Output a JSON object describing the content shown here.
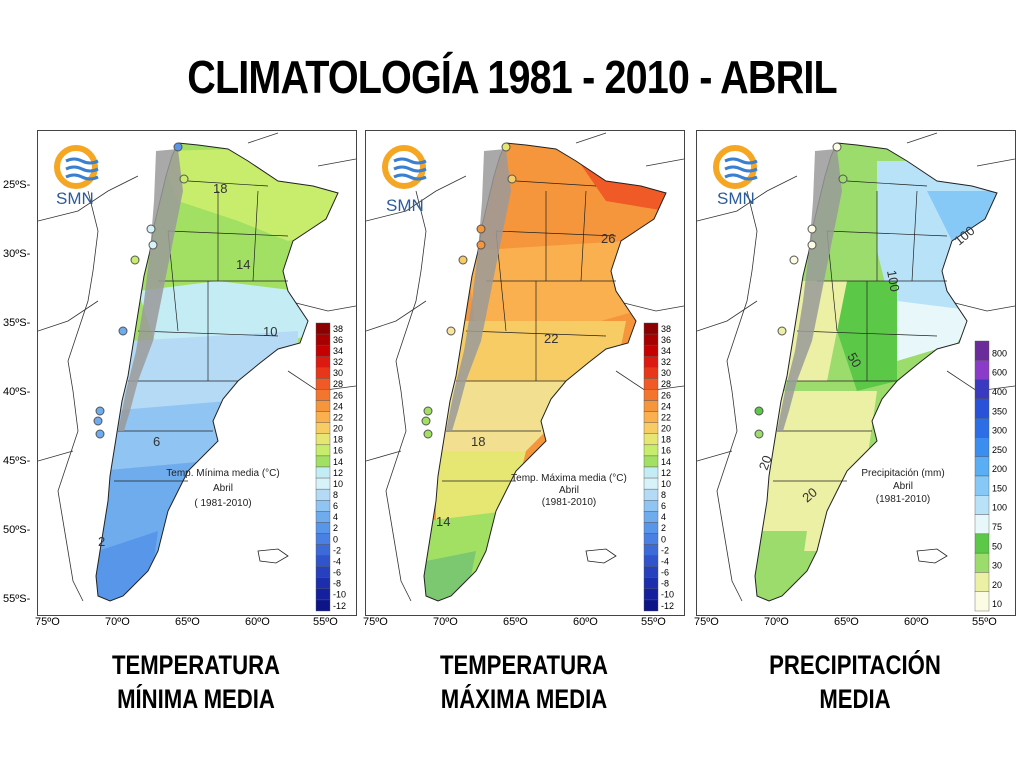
{
  "title": "CLIMATOLOGÍA 1981 - 2010 - ABRIL",
  "logo_text": "SMN",
  "lat_ticks": [
    "25ºS-",
    "30ºS-",
    "35ºS-",
    "40ºS-",
    "45ºS-",
    "50ºS-",
    "55ºS-"
  ],
  "lon_ticks": [
    "75ºO",
    "70ºO",
    "65ºO",
    "60ºO",
    "55ºO"
  ],
  "panels": [
    {
      "caption": [
        "TEMPERATURA",
        "MÍNIMA MEDIA"
      ],
      "annotation": [
        "Temp. Mínima media  (°C)",
        "Abril",
        "( 1981-2010)"
      ],
      "contour_labels": [
        "18",
        "14",
        "10",
        "6",
        "2"
      ],
      "legend": [
        "38",
        "36",
        "34",
        "32",
        "30",
        "28",
        "26",
        "24",
        "22",
        "20",
        "18",
        "16",
        "14",
        "12",
        "10",
        "8",
        "6",
        "4",
        "2",
        "0",
        "-2",
        "-4",
        "-6",
        "-8",
        "-10",
        "-12"
      ],
      "legend_colors": [
        "#8b0000",
        "#a80000",
        "#c40000",
        "#dc1a12",
        "#e8361a",
        "#ef5a26",
        "#f2762e",
        "#f6963c",
        "#fab04e",
        "#f8cc64",
        "#e6e672",
        "#c8ec6c",
        "#a2e064",
        "#c4ecf4",
        "#d8f2fa",
        "#b4daf6",
        "#90c4f2",
        "#6eacee",
        "#5896ea",
        "#4a80e4",
        "#3c6ad8",
        "#3054cc",
        "#2640be",
        "#1c2eae",
        "#14209e",
        "#0c1488"
      ]
    },
    {
      "caption": [
        "TEMPERATURA",
        "MÁXIMA MEDIA"
      ],
      "annotation": [
        "Temp. Máxima media (°C)",
        "Abril",
        "(1981-2010)"
      ],
      "contour_labels": [
        "26",
        "22",
        "18",
        "14"
      ],
      "legend": [
        "38",
        "36",
        "34",
        "32",
        "30",
        "28",
        "26",
        "24",
        "22",
        "20",
        "18",
        "16",
        "14",
        "12",
        "10",
        "8",
        "6",
        "4",
        "2",
        "0",
        "-2",
        "-4",
        "-6",
        "-8",
        "-10",
        "-12"
      ],
      "legend_colors": [
        "#8b0000",
        "#a80000",
        "#c40000",
        "#dc1a12",
        "#e8361a",
        "#ef5a26",
        "#f2762e",
        "#f6963c",
        "#fab04e",
        "#f8cc64",
        "#e6e672",
        "#c8ec6c",
        "#a2e064",
        "#c4ecf4",
        "#d8f2fa",
        "#b4daf6",
        "#90c4f2",
        "#6eacee",
        "#5896ea",
        "#4a80e4",
        "#3c6ad8",
        "#3054cc",
        "#2640be",
        "#1c2eae",
        "#14209e",
        "#0c1488"
      ]
    },
    {
      "caption": [
        "PRECIPITACIÓN",
        "MEDIA"
      ],
      "annotation": [
        "Precipitación (mm)",
        "Abril",
        "(1981-2010)"
      ],
      "contour_labels": [
        "100",
        "50",
        "20",
        "20",
        "100"
      ],
      "legend": [
        "800",
        "600",
        "400",
        "350",
        "300",
        "250",
        "200",
        "150",
        "100",
        "75",
        "50",
        "30",
        "20",
        "10"
      ],
      "legend_colors": [
        "#6a2c9a",
        "#8a3cc8",
        "#3a3ac0",
        "#2a52d8",
        "#2c6ee6",
        "#3a8ef0",
        "#5aaef4",
        "#86c8f6",
        "#b8e2f8",
        "#e8f8fa",
        "#5cc848",
        "#9cdc6c",
        "#ecf0a4",
        "#fcfce4"
      ]
    }
  ]
}
